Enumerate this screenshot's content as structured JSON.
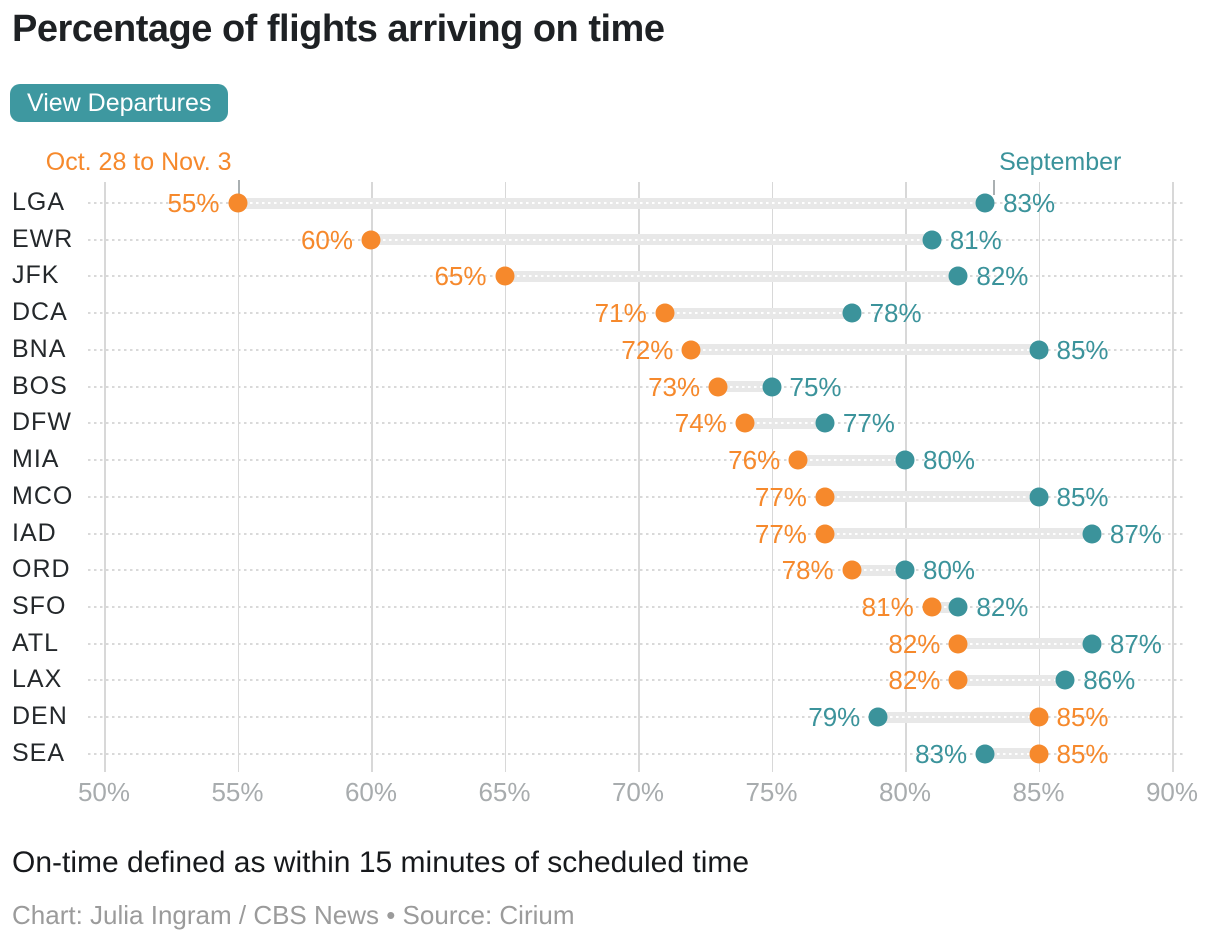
{
  "title": "Percentage of flights arriving on time",
  "button": {
    "label": "View Departures"
  },
  "legend": {
    "current_week_label": "Oct. 28 to Nov. 3",
    "september_label": "September"
  },
  "colors": {
    "orange": "#f6892c",
    "teal": "#3b939b",
    "button": "#3e98a0",
    "connector_bar": "#e8e8e8",
    "gridline": "#d8d8d8",
    "row_dotted_line": "#d9d9d9",
    "axis_text": "#a8acae",
    "row_label_text": "#24282b",
    "title_text": "#1e2124",
    "credit_text": "#9b9b9b"
  },
  "chart_data": {
    "type": "dumbbell",
    "title": "Percentage of flights arriving on time",
    "categories": [
      "LGA",
      "EWR",
      "JFK",
      "DCA",
      "BNA",
      "BOS",
      "DFW",
      "MIA",
      "MCO",
      "IAD",
      "ORD",
      "SFO",
      "ATL",
      "LAX",
      "DEN",
      "SEA"
    ],
    "series": [
      {
        "name": "Oct. 28 to Nov. 3",
        "color": "#f6892c",
        "values": [
          55,
          60,
          65,
          71,
          72,
          73,
          74,
          76,
          77,
          77,
          78,
          81,
          82,
          82,
          85,
          85
        ]
      },
      {
        "name": "September",
        "color": "#3b939b",
        "values": [
          83,
          81,
          82,
          78,
          85,
          75,
          77,
          80,
          85,
          87,
          80,
          82,
          87,
          86,
          79,
          83
        ]
      }
    ],
    "xlim": [
      50,
      90
    ],
    "x_ticks": [
      {
        "value": 50,
        "label": "50%"
      },
      {
        "value": 55,
        "label": "55%"
      },
      {
        "value": 60,
        "label": "60%"
      },
      {
        "value": 65,
        "label": "65%"
      },
      {
        "value": 70,
        "label": "70%"
      },
      {
        "value": 75,
        "label": "75%"
      },
      {
        "value": 80,
        "label": "80%"
      },
      {
        "value": 85,
        "label": "85%"
      },
      {
        "value": 90,
        "label": "90%"
      }
    ],
    "value_suffix": "%",
    "grid": "vertical solid lines at ticks; dotted horizontal line per row",
    "legend_position": "top, series labels above first row dots"
  },
  "footnote": "On-time defined as within 15 minutes of scheduled time",
  "credit": "Chart: Julia Ingram / CBS News • Source: Cirium"
}
